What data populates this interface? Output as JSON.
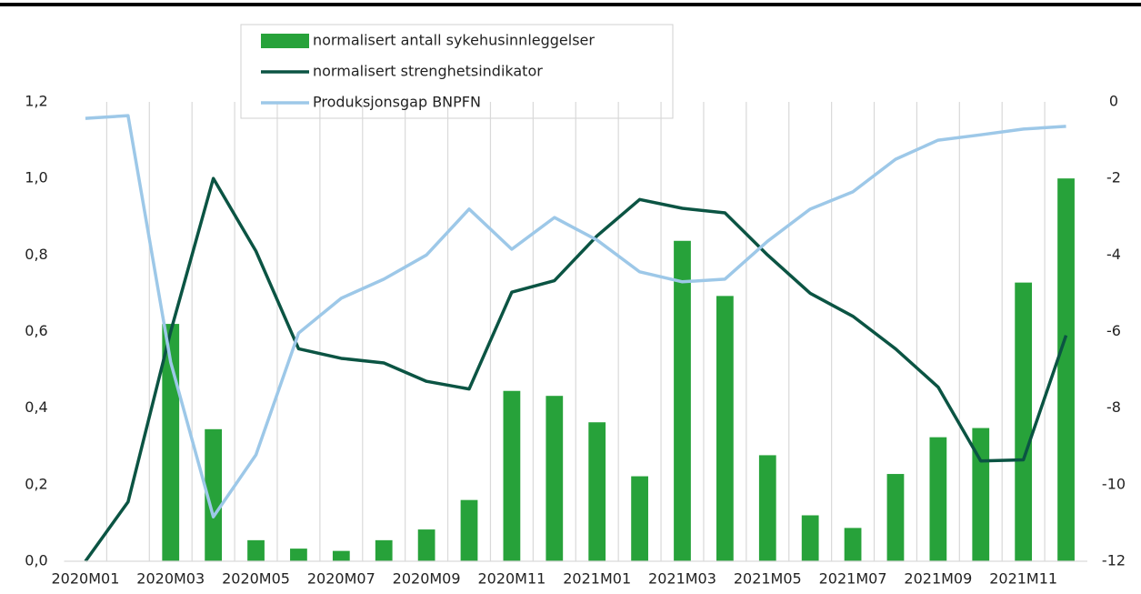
{
  "chart_data": {
    "type": "bar_line",
    "categories": [
      "2020M01",
      null,
      "2020M03",
      null,
      "2020M05",
      null,
      "2020M07",
      null,
      "2020M09",
      null,
      "2020M11",
      null,
      "2021M01",
      null,
      "2021M03",
      null,
      "2021M05",
      null,
      "2021M07",
      null,
      "2021M09",
      null,
      "2021M11",
      null
    ],
    "series": [
      {
        "name": "normalisert antall sykehusinnleggelser",
        "type": "bar",
        "color": "#27a23a",
        "values": [
          0,
          0,
          0.62,
          0.345,
          0.055,
          0.033,
          0.027,
          0.055,
          0.083,
          0.16,
          0.445,
          0.432,
          0.363,
          0.222,
          0.837,
          0.693,
          0.277,
          0.12,
          0.087,
          0.228,
          0.324,
          0.348,
          0.728,
          1.0
        ]
      },
      {
        "name": "normalisert strenghetsindikator",
        "type": "line",
        "color": "#0b5443",
        "values": [
          0.0,
          0.155,
          0.6,
          1.0,
          0.81,
          0.555,
          0.53,
          0.518,
          0.47,
          0.45,
          0.703,
          0.733,
          0.85,
          0.945,
          0.922,
          0.91,
          0.8,
          0.7,
          0.64,
          0.555,
          0.455,
          0.262,
          0.265,
          0.59
        ]
      },
      {
        "name": "Produksjonsgap BNPFN",
        "type": "line",
        "axis": "y2",
        "color": "#9dc8e8",
        "values": [
          -0.43,
          -0.36,
          -6.8,
          -10.84,
          -9.22,
          -6.04,
          -5.13,
          -4.63,
          -4.0,
          -2.8,
          -3.85,
          -3.02,
          -3.61,
          -4.44,
          -4.7,
          -4.63,
          -3.64,
          -2.8,
          -2.35,
          -1.5,
          -1.0,
          -0.86,
          -0.71,
          -0.64
        ]
      }
    ],
    "ylim": [
      0,
      1.2
    ],
    "yticks": [
      {
        "value": 0,
        "label": "0,0"
      },
      {
        "value": 0.2,
        "label": "0,2"
      },
      {
        "value": 0.4,
        "label": "0,4"
      },
      {
        "value": 0.6,
        "label": "0,6"
      },
      {
        "value": 0.8,
        "label": "0,8"
      },
      {
        "value": 1.0,
        "label": "1,0"
      },
      {
        "value": 1.2,
        "label": "1,2"
      }
    ],
    "y2lim": [
      -12,
      0
    ],
    "y2ticks": [
      -12,
      -10,
      -8,
      -6,
      -4,
      -2,
      0
    ],
    "xgrid": true,
    "legend": "top"
  }
}
